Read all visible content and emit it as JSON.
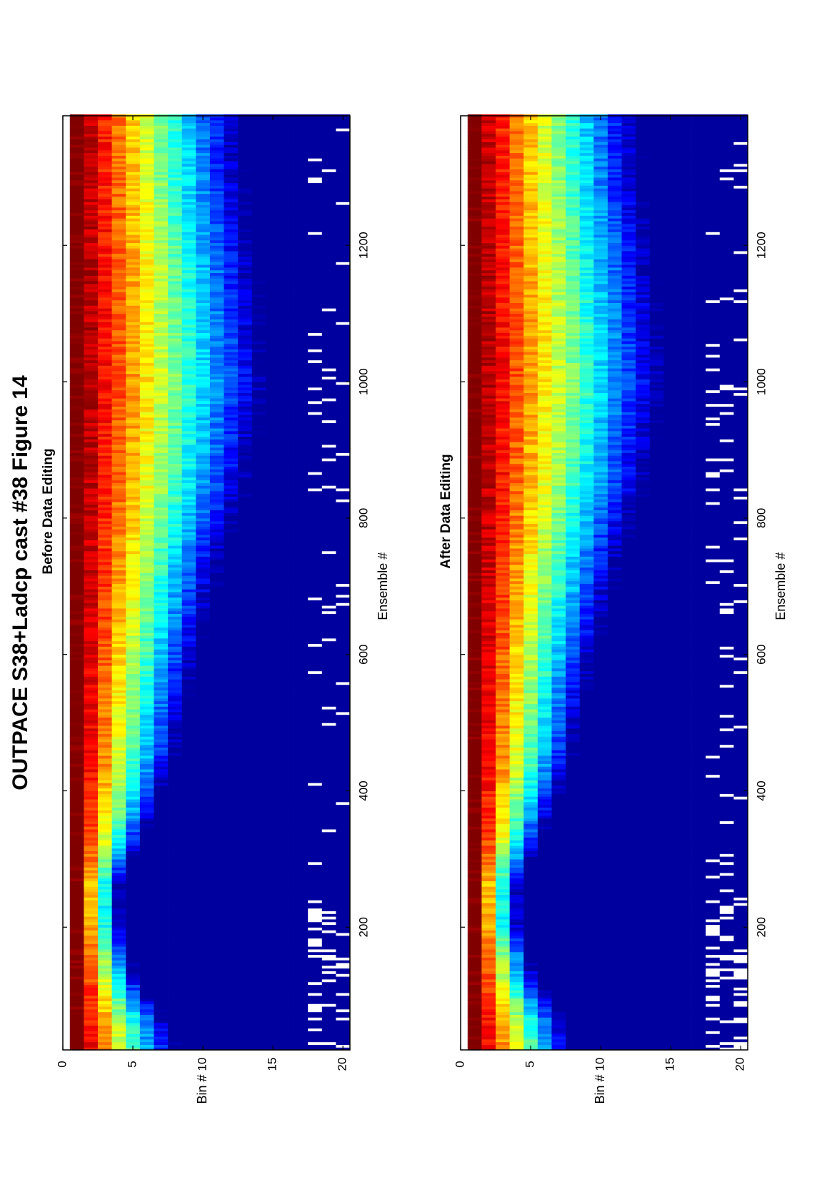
{
  "figure": {
    "title": "OUTPACE S38+Ladcp cast #38  Figure 14"
  },
  "chart_data": [
    {
      "type": "heatmap",
      "title": "Before Data Editing",
      "xlabel": "Ensemble #",
      "ylabel": "Bin #",
      "xlim": [
        20,
        1390
      ],
      "ylim": [
        0,
        20.5
      ],
      "xticks": [
        200,
        400,
        600,
        800,
        1000,
        1200
      ],
      "yticks": [
        0,
        5,
        10,
        15,
        20
      ],
      "colormap": "jet",
      "bins": 20,
      "ensembles": 1370,
      "missing_data_color": "#ffffff",
      "edited": false
    },
    {
      "type": "heatmap",
      "title": "After Data Editing",
      "xlabel": "Ensemble #",
      "ylabel": "Bin #",
      "xlim": [
        20,
        1390
      ],
      "ylim": [
        0,
        20.5
      ],
      "xticks": [
        200,
        400,
        600,
        800,
        1000,
        1200
      ],
      "yticks": [
        0,
        5,
        10,
        15,
        20
      ],
      "colormap": "jet",
      "bins": 20,
      "ensembles": 1370,
      "missing_data_color": "#ffffff",
      "edited": true
    }
  ]
}
